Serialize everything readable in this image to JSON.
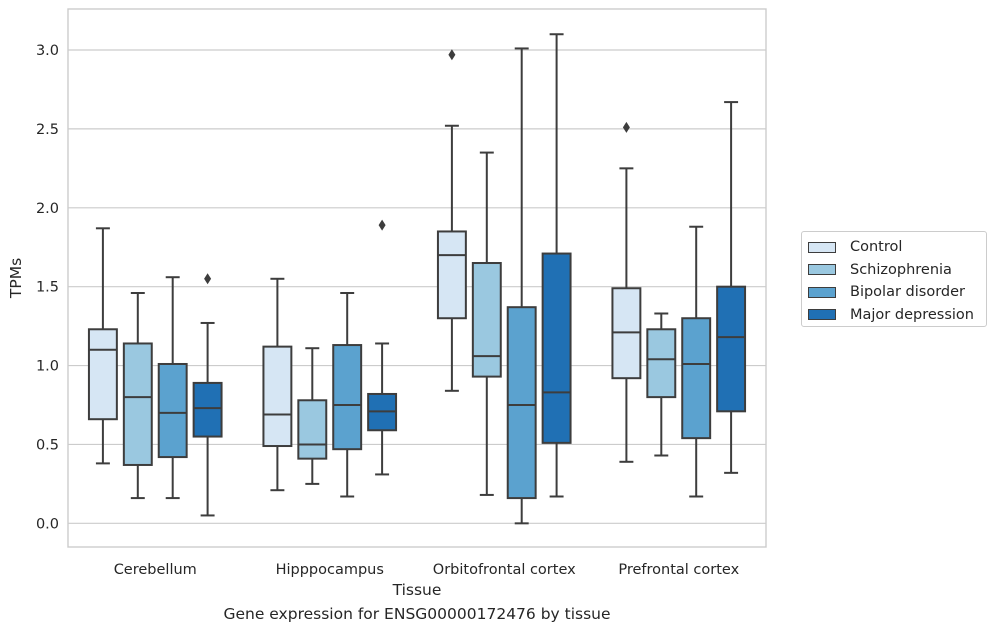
{
  "caption": "Gene expression for ENSG00000172476 by tissue",
  "chart_data": {
    "type": "boxplot",
    "xlabel": "Tissue",
    "ylabel": "TPMs",
    "ylim": [
      -0.15,
      3.26
    ],
    "yticks": [
      "0.0",
      "0.5",
      "1.0",
      "1.5",
      "2.0",
      "2.5",
      "3.0"
    ],
    "grid": "horizontal",
    "legend_position": "outside-right",
    "categories": [
      "Cerebellum",
      "Hipppocampus",
      "Orbitofrontal cortex",
      "Prefrontal cortex"
    ],
    "series": [
      {
        "name": "Control",
        "color": "#d6e6f4",
        "boxes": [
          {
            "whislo": 0.38,
            "q1": 0.66,
            "med": 1.1,
            "q3": 1.23,
            "whishi": 1.87,
            "fliers": []
          },
          {
            "whislo": 0.21,
            "q1": 0.49,
            "med": 0.69,
            "q3": 1.12,
            "whishi": 1.55,
            "fliers": []
          },
          {
            "whislo": 0.84,
            "q1": 1.3,
            "med": 1.7,
            "q3": 1.85,
            "whishi": 2.52,
            "fliers": [
              2.97
            ]
          },
          {
            "whislo": 0.39,
            "q1": 0.92,
            "med": 1.21,
            "q3": 1.49,
            "whishi": 2.25,
            "fliers": [
              2.51
            ]
          }
        ]
      },
      {
        "name": "Schizophrenia",
        "color": "#9ac8e0",
        "boxes": [
          {
            "whislo": 0.16,
            "q1": 0.37,
            "med": 0.8,
            "q3": 1.14,
            "whishi": 1.46,
            "fliers": []
          },
          {
            "whislo": 0.25,
            "q1": 0.41,
            "med": 0.5,
            "q3": 0.78,
            "whishi": 1.11,
            "fliers": []
          },
          {
            "whislo": 0.18,
            "q1": 0.93,
            "med": 1.06,
            "q3": 1.65,
            "whishi": 2.35,
            "fliers": []
          },
          {
            "whislo": 0.43,
            "q1": 0.8,
            "med": 1.04,
            "q3": 1.23,
            "whishi": 1.33,
            "fliers": []
          }
        ]
      },
      {
        "name": "Bipolar disorder",
        "color": "#5ba2cf",
        "boxes": [
          {
            "whislo": 0.16,
            "q1": 0.42,
            "med": 0.7,
            "q3": 1.01,
            "whishi": 1.56,
            "fliers": []
          },
          {
            "whislo": 0.17,
            "q1": 0.47,
            "med": 0.75,
            "q3": 1.13,
            "whishi": 1.46,
            "fliers": []
          },
          {
            "whislo": 0.0,
            "q1": 0.16,
            "med": 0.75,
            "q3": 1.37,
            "whishi": 3.01,
            "fliers": []
          },
          {
            "whislo": 0.17,
            "q1": 0.54,
            "med": 1.01,
            "q3": 1.3,
            "whishi": 1.88,
            "fliers": []
          }
        ]
      },
      {
        "name": "Major depression",
        "color": "#2070b4",
        "boxes": [
          {
            "whislo": 0.05,
            "q1": 0.55,
            "med": 0.73,
            "q3": 0.89,
            "whishi": 1.27,
            "fliers": [
              1.55
            ]
          },
          {
            "whislo": 0.31,
            "q1": 0.59,
            "med": 0.71,
            "q3": 0.82,
            "whishi": 1.14,
            "fliers": [
              1.89
            ]
          },
          {
            "whislo": 0.17,
            "q1": 0.51,
            "med": 0.83,
            "q3": 1.71,
            "whishi": 3.1,
            "fliers": []
          },
          {
            "whislo": 0.32,
            "q1": 0.71,
            "med": 1.18,
            "q3": 1.5,
            "whishi": 2.67,
            "fliers": []
          }
        ]
      }
    ]
  }
}
